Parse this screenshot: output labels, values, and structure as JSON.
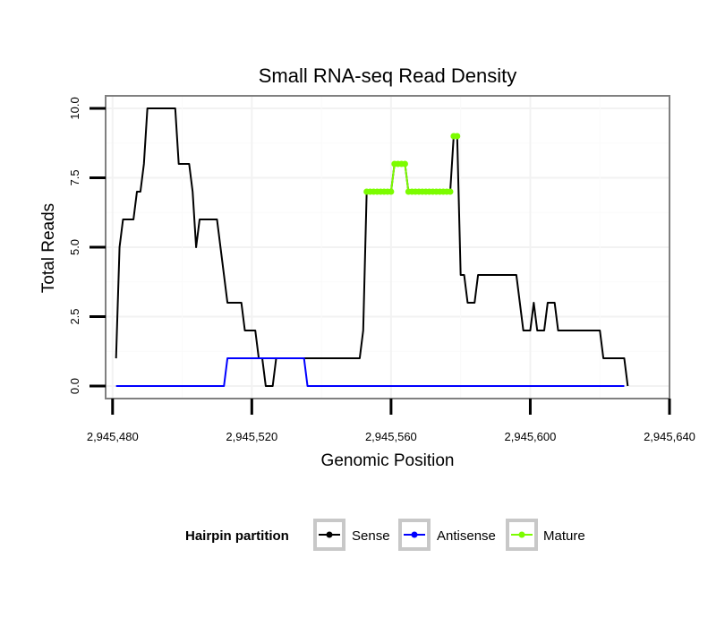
{
  "chart_data": {
    "type": "line",
    "title": "Small RNA-seq Read Density",
    "xlabel": "Genomic Position",
    "ylabel": "Total Reads",
    "xlim": [
      2945478,
      2945640
    ],
    "ylim": [
      -0.45,
      10.45
    ],
    "grid": true,
    "x_ticks": [
      2945480,
      2945520,
      2945560,
      2945600,
      2945640
    ],
    "x_tick_labels": [
      "2,945,480",
      "2,945,520",
      "2,945,560",
      "2,945,600",
      "2,945,640"
    ],
    "y_ticks": [
      0,
      2.5,
      5,
      7.5,
      10
    ],
    "y_tick_labels": [
      "0.0",
      "2.5",
      "5.0",
      "7.5",
      "10.0"
    ],
    "legend_title": "Hairpin partition",
    "legend_position": "bottom",
    "series": [
      {
        "name": "Sense",
        "color": "#000000",
        "points": [
          [
            2945481,
            1
          ],
          [
            2945482,
            5
          ],
          [
            2945483,
            6
          ],
          [
            2945484,
            6
          ],
          [
            2945485,
            6
          ],
          [
            2945486,
            6
          ],
          [
            2945487,
            7
          ],
          [
            2945488,
            7
          ],
          [
            2945489,
            8
          ],
          [
            2945490,
            10
          ],
          [
            2945491,
            10
          ],
          [
            2945492,
            10
          ],
          [
            2945493,
            10
          ],
          [
            2945494,
            10
          ],
          [
            2945495,
            10
          ],
          [
            2945496,
            10
          ],
          [
            2945497,
            10
          ],
          [
            2945498,
            10
          ],
          [
            2945499,
            8
          ],
          [
            2945500,
            8
          ],
          [
            2945501,
            8
          ],
          [
            2945502,
            8
          ],
          [
            2945503,
            7
          ],
          [
            2945504,
            5
          ],
          [
            2945505,
            6
          ],
          [
            2945506,
            6
          ],
          [
            2945507,
            6
          ],
          [
            2945508,
            6
          ],
          [
            2945509,
            6
          ],
          [
            2945510,
            6
          ],
          [
            2945511,
            5
          ],
          [
            2945512,
            4
          ],
          [
            2945513,
            3
          ],
          [
            2945514,
            3
          ],
          [
            2945515,
            3
          ],
          [
            2945516,
            3
          ],
          [
            2945517,
            3
          ],
          [
            2945518,
            2
          ],
          [
            2945519,
            2
          ],
          [
            2945520,
            2
          ],
          [
            2945521,
            2
          ],
          [
            2945522,
            1
          ],
          [
            2945523,
            1
          ],
          [
            2945524,
            0
          ],
          [
            2945525,
            0
          ],
          [
            2945526,
            0
          ],
          [
            2945527,
            1
          ],
          [
            2945528,
            1
          ],
          [
            2945529,
            1
          ],
          [
            2945530,
            1
          ],
          [
            2945531,
            1
          ],
          [
            2945532,
            1
          ],
          [
            2945533,
            1
          ],
          [
            2945534,
            1
          ],
          [
            2945535,
            1
          ],
          [
            2945536,
            1
          ],
          [
            2945537,
            1
          ],
          [
            2945538,
            1
          ],
          [
            2945539,
            1
          ],
          [
            2945540,
            1
          ],
          [
            2945541,
            1
          ],
          [
            2945542,
            1
          ],
          [
            2945543,
            1
          ],
          [
            2945544,
            1
          ],
          [
            2945545,
            1
          ],
          [
            2945546,
            1
          ],
          [
            2945547,
            1
          ],
          [
            2945548,
            1
          ],
          [
            2945549,
            1
          ],
          [
            2945550,
            1
          ],
          [
            2945551,
            1
          ],
          [
            2945552,
            2
          ],
          [
            2945553,
            7
          ],
          [
            2945554,
            7
          ],
          [
            2945555,
            7
          ],
          [
            2945556,
            7
          ],
          [
            2945557,
            7
          ],
          [
            2945558,
            7
          ],
          [
            2945559,
            7
          ],
          [
            2945560,
            7
          ],
          [
            2945561,
            8
          ],
          [
            2945562,
            8
          ],
          [
            2945563,
            8
          ],
          [
            2945564,
            8
          ],
          [
            2945565,
            7
          ],
          [
            2945566,
            7
          ],
          [
            2945567,
            7
          ],
          [
            2945568,
            7
          ],
          [
            2945569,
            7
          ],
          [
            2945570,
            7
          ],
          [
            2945571,
            7
          ],
          [
            2945572,
            7
          ],
          [
            2945573,
            7
          ],
          [
            2945574,
            7
          ],
          [
            2945575,
            7
          ],
          [
            2945576,
            7
          ],
          [
            2945577,
            7
          ],
          [
            2945578,
            9
          ],
          [
            2945579,
            9
          ],
          [
            2945580,
            4
          ],
          [
            2945581,
            4
          ],
          [
            2945582,
            3
          ],
          [
            2945583,
            3
          ],
          [
            2945584,
            3
          ],
          [
            2945585,
            4
          ],
          [
            2945586,
            4
          ],
          [
            2945587,
            4
          ],
          [
            2945588,
            4
          ],
          [
            2945589,
            4
          ],
          [
            2945590,
            4
          ],
          [
            2945591,
            4
          ],
          [
            2945592,
            4
          ],
          [
            2945593,
            4
          ],
          [
            2945594,
            4
          ],
          [
            2945595,
            4
          ],
          [
            2945596,
            4
          ],
          [
            2945597,
            3
          ],
          [
            2945598,
            2
          ],
          [
            2945599,
            2
          ],
          [
            2945600,
            2
          ],
          [
            2945601,
            3
          ],
          [
            2945602,
            2
          ],
          [
            2945603,
            2
          ],
          [
            2945604,
            2
          ],
          [
            2945605,
            3
          ],
          [
            2945606,
            3
          ],
          [
            2945607,
            3
          ],
          [
            2945608,
            2
          ],
          [
            2945609,
            2
          ],
          [
            2945610,
            2
          ],
          [
            2945611,
            2
          ],
          [
            2945612,
            2
          ],
          [
            2945613,
            2
          ],
          [
            2945614,
            2
          ],
          [
            2945615,
            2
          ],
          [
            2945616,
            2
          ],
          [
            2945617,
            2
          ],
          [
            2945618,
            2
          ],
          [
            2945619,
            2
          ],
          [
            2945620,
            2
          ],
          [
            2945621,
            1
          ],
          [
            2945622,
            1
          ],
          [
            2945623,
            1
          ],
          [
            2945624,
            1
          ],
          [
            2945625,
            1
          ],
          [
            2945626,
            1
          ],
          [
            2945627,
            1
          ],
          [
            2945628,
            0
          ]
        ]
      },
      {
        "name": "Antisense",
        "color": "#0000ff",
        "points": [
          [
            2945481,
            0
          ],
          [
            2945512,
            0
          ],
          [
            2945513,
            1
          ],
          [
            2945535,
            1
          ],
          [
            2945536,
            0
          ],
          [
            2945627,
            0
          ]
        ]
      },
      {
        "name": "Mature",
        "color": "#7cfc00",
        "segments": [
          [
            [
              2945553,
              7
            ],
            [
              2945554,
              7
            ],
            [
              2945555,
              7
            ],
            [
              2945556,
              7
            ],
            [
              2945557,
              7
            ],
            [
              2945558,
              7
            ],
            [
              2945559,
              7
            ],
            [
              2945560,
              7
            ],
            [
              2945561,
              8
            ],
            [
              2945562,
              8
            ],
            [
              2945563,
              8
            ],
            [
              2945564,
              8
            ],
            [
              2945565,
              7
            ],
            [
              2945566,
              7
            ],
            [
              2945567,
              7
            ],
            [
              2945568,
              7
            ],
            [
              2945569,
              7
            ],
            [
              2945570,
              7
            ],
            [
              2945571,
              7
            ],
            [
              2945572,
              7
            ],
            [
              2945573,
              7
            ],
            [
              2945574,
              7
            ],
            [
              2945575,
              7
            ],
            [
              2945576,
              7
            ],
            [
              2945577,
              7
            ]
          ],
          [
            [
              2945578,
              9
            ],
            [
              2945579,
              9
            ]
          ]
        ]
      }
    ]
  }
}
